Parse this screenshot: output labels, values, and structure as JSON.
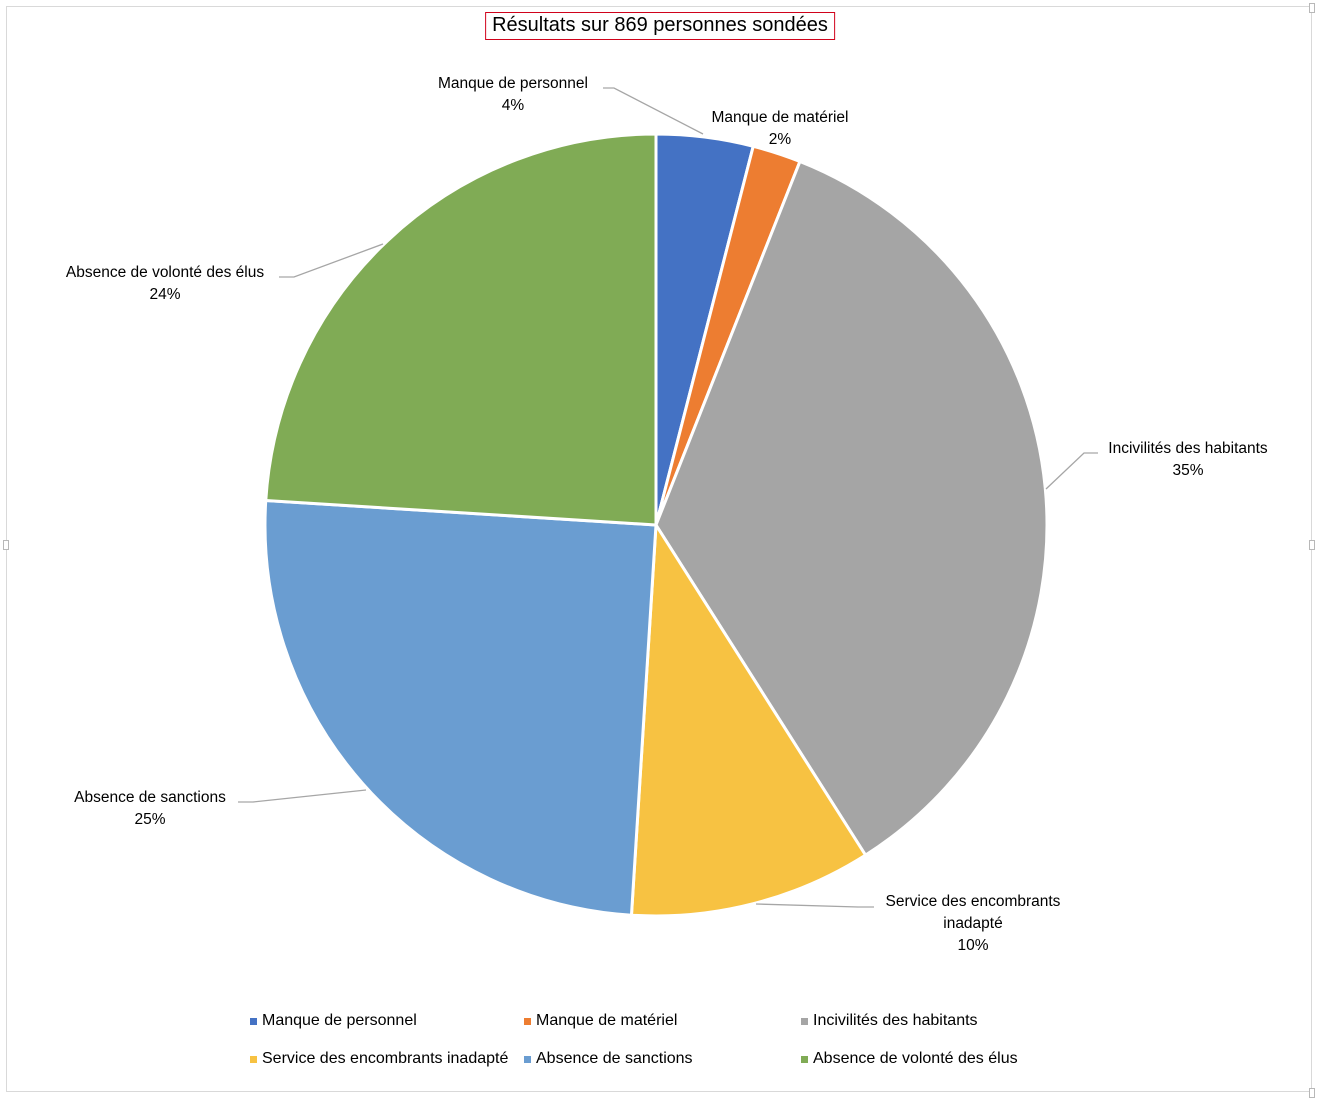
{
  "chart_data": {
    "type": "pie",
    "title": "Résultats sur 869 personnes sondées",
    "slices": [
      {
        "label": "Manque de personnel",
        "label_lines": [
          "Manque de personnel"
        ],
        "percent_text": "4%",
        "value": 4,
        "color": "#4472c4"
      },
      {
        "label": "Manque de matériel",
        "label_lines": [
          "Manque de matériel"
        ],
        "percent_text": "2%",
        "value": 2,
        "color": "#ed7d31"
      },
      {
        "label": "Incivilités des habitants",
        "label_lines": [
          "Incivilités des habitants"
        ],
        "percent_text": "35%",
        "value": 35,
        "color": "#a5a5a5"
      },
      {
        "label": "Service des encombrants inadapté",
        "label_lines": [
          "Service des encombrants",
          "inadapté"
        ],
        "percent_text": "10%",
        "value": 10,
        "color": "#f7c242"
      },
      {
        "label": "Absence de sanctions",
        "label_lines": [
          "Absence de sanctions"
        ],
        "percent_text": "25%",
        "value": 25,
        "color": "#6a9dd1"
      },
      {
        "label": "Absence de volonté des élus",
        "label_lines": [
          "Absence de volonté des élus"
        ],
        "percent_text": "24%",
        "value": 24,
        "color": "#80ab55"
      }
    ],
    "legend_position": "bottom"
  }
}
